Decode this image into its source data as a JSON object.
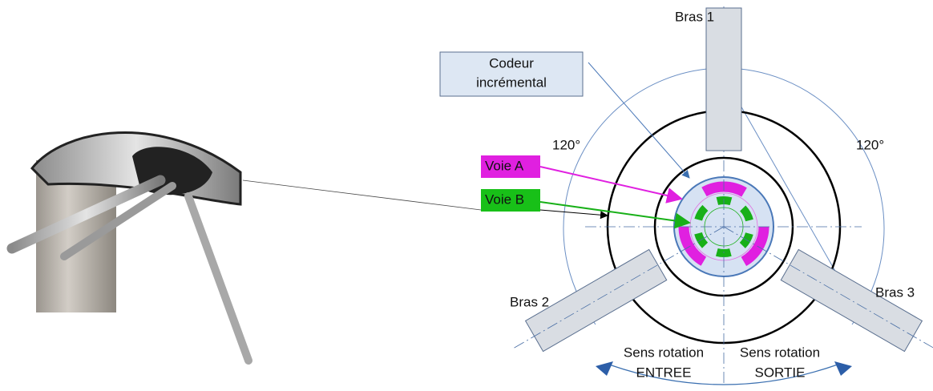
{
  "labels": {
    "bras_1": "Bras 1",
    "bras_2": "Bras 2",
    "bras_3": "Bras 3",
    "codeur": [
      "Codeur",
      "incrémental"
    ],
    "angle_left": "120°",
    "angle_right": "120°",
    "voie_a": "Voie A",
    "voie_b": "Voie B",
    "sens_entree": [
      "Sens rotation",
      "ENTREE"
    ],
    "sens_sortie": [
      "Sens rotation",
      "SORTIE"
    ]
  }
}
